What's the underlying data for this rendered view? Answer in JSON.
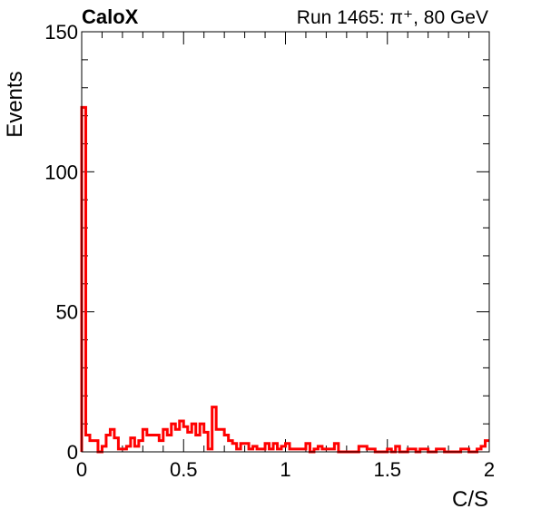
{
  "chart_data": {
    "type": "histogram",
    "title_left": "CaloX",
    "title_right": "Run 1465: π⁺, 80 GeV",
    "xlabel": "C/S",
    "ylabel": "Events",
    "xlim": [
      0,
      2
    ],
    "ylim": [
      0,
      150
    ],
    "x_ticks": [
      0,
      0.5,
      1,
      1.5,
      2
    ],
    "x_tick_labels": [
      "0",
      "0.5",
      "1",
      "1.5",
      "2"
    ],
    "y_ticks": [
      0,
      50,
      100,
      150
    ],
    "y_tick_labels": [
      "0",
      "50",
      "100",
      "150"
    ],
    "bin_width": 0.02,
    "line_color": "#ff0000",
    "grid": false,
    "series": [
      {
        "values": [
          123,
          6,
          4,
          4,
          0,
          2,
          6,
          8,
          5,
          1,
          1,
          2,
          5,
          2,
          4,
          8,
          6,
          6,
          6,
          4,
          8,
          6,
          10,
          8,
          11,
          9,
          7,
          10,
          6,
          10,
          7,
          1,
          16,
          8,
          8,
          6,
          4,
          3,
          1,
          3,
          3,
          1,
          2,
          1,
          1,
          3,
          1,
          3,
          1,
          2,
          3,
          1,
          1,
          1,
          1,
          3,
          0,
          1,
          2,
          1,
          1,
          1,
          3,
          0,
          0,
          0,
          0,
          0,
          2,
          2,
          1,
          1,
          0,
          0,
          0,
          1,
          0,
          2,
          0,
          0,
          1,
          1,
          0,
          1,
          1,
          0,
          0,
          1,
          1,
          0,
          0,
          0,
          0,
          1,
          1,
          0,
          0,
          1,
          2,
          4
        ]
      }
    ]
  }
}
